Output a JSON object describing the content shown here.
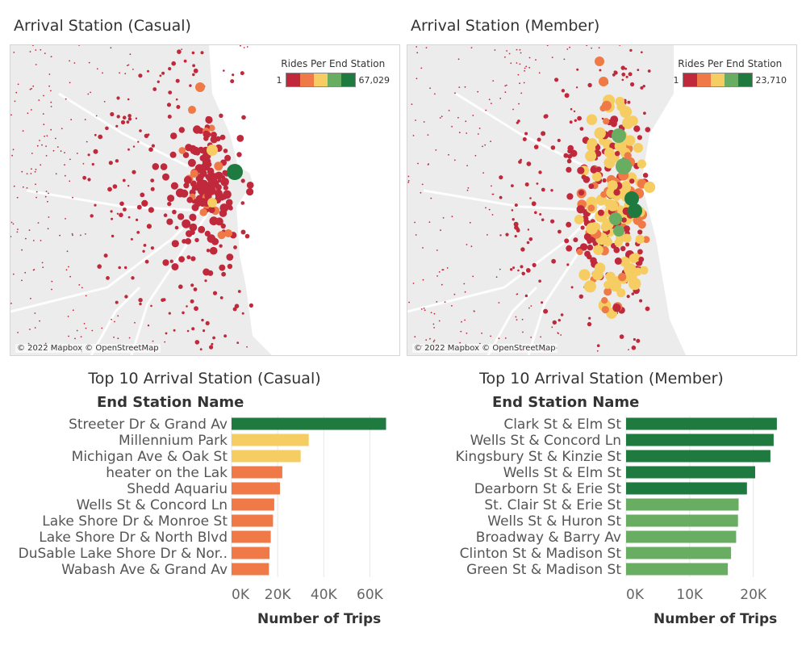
{
  "colors": {
    "scale": [
      "#c0283b",
      "#ef7a47",
      "#f5cd62",
      "#68ad62",
      "#1f7a40"
    ],
    "map_bg": "#ececec",
    "lake": "#ffffff",
    "road": "#ffffff"
  },
  "left": {
    "map_title": "Arrival Station (Casual)",
    "legend_title": "Rides Per End Station",
    "legend_min": "1",
    "legend_max": "67,029",
    "attribution": "© 2022 Mapbox © OpenStreetMap",
    "chart_title": "Top 10 Arrival Station (Casual)",
    "column_header": "End Station Name",
    "xlabel": "Number of Trips"
  },
  "right": {
    "map_title": "Arrival Station (Member)",
    "legend_title": "Rides Per End Station",
    "legend_min": "1",
    "legend_max": "23,710",
    "attribution": "© 2022 Mapbox © OpenStreetMap",
    "chart_title": "Top 10 Arrival Station (Member)",
    "column_header": "End Station Name",
    "xlabel": "Number of Trips"
  },
  "chart_data": [
    {
      "type": "bar",
      "orientation": "horizontal",
      "title": "Top 10 Arrival Station (Casual)",
      "ylabel": "End Station Name",
      "xlabel": "Number of Trips",
      "xlim": [
        0,
        70000
      ],
      "xticks": [
        0,
        20000,
        40000,
        60000
      ],
      "xtick_labels": [
        "0K",
        "20K",
        "40K",
        "60K"
      ],
      "grid": true,
      "categories": [
        "Streeter Dr & Grand Av",
        "Millennium Park",
        "Michigan Ave & Oak St",
        "heater on the Lak",
        "Shedd Aquariu",
        "Wells St & Concord Ln",
        "Lake Shore Dr & Monroe St",
        "Lake Shore Dr & North Blvd",
        "DuSable Lake Shore Dr & Nor..",
        "Wabash Ave & Grand Av"
      ],
      "values": [
        67029,
        33500,
        30000,
        22000,
        21000,
        18500,
        18000,
        17000,
        16500,
        16200
      ],
      "bar_colors": [
        "#1f7a40",
        "#f5cd62",
        "#f5cd62",
        "#ef7a47",
        "#ef7a47",
        "#ef7a47",
        "#ef7a47",
        "#ef7a47",
        "#ef7a47",
        "#ef7a47"
      ]
    },
    {
      "type": "bar",
      "orientation": "horizontal",
      "title": "Top 10 Arrival Station (Member)",
      "ylabel": "End Station Name",
      "xlabel": "Number of Trips",
      "xlim": [
        0,
        25500
      ],
      "xticks": [
        0,
        10000,
        20000
      ],
      "xtick_labels": [
        "0K",
        "10K",
        "20K"
      ],
      "grid": true,
      "categories": [
        "Clark St & Elm St",
        "Wells St & Concord Ln",
        "Kingsbury St & Kinzie St",
        "Wells St & Elm St",
        "Dearborn St & Erie St",
        "St. Clair St & Erie St",
        "Wells St & Huron St",
        "Broadway & Barry Av",
        "Clinton St & Madison St",
        "Green St & Madison St"
      ],
      "values": [
        23710,
        23200,
        22700,
        20300,
        19000,
        17700,
        17600,
        17300,
        16500,
        16000
      ],
      "bar_colors": [
        "#1f7a40",
        "#1f7a40",
        "#1f7a40",
        "#1f7a40",
        "#1f7a40",
        "#68ad62",
        "#68ad62",
        "#68ad62",
        "#68ad62",
        "#68ad62"
      ]
    }
  ]
}
